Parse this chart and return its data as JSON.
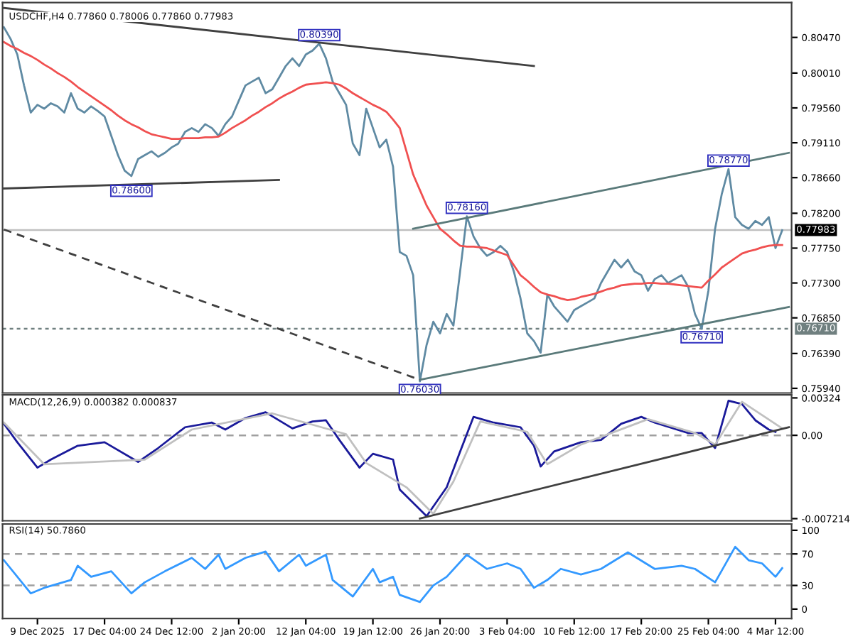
{
  "chart_data": [
    {
      "type": "line",
      "title": "USDCHF,H4 0.77860 0.78006 0.77860 0.77983",
      "series": [
        {
          "color": "#5f8aa3",
          "values": [
            0.806,
            0.8045,
            0.8025,
            0.7985,
            0.795,
            0.796,
            0.7955,
            0.7962,
            0.7958,
            0.795,
            0.7975,
            0.7955,
            0.795,
            0.7958,
            0.7952,
            0.7945,
            0.792,
            0.7895,
            0.7875,
            0.7868,
            0.789,
            0.7895,
            0.79,
            0.7893,
            0.7898,
            0.7905,
            0.791,
            0.7925,
            0.793,
            0.7925,
            0.7935,
            0.793,
            0.792,
            0.7935,
            0.7945,
            0.7965,
            0.7985,
            0.799,
            0.7995,
            0.7975,
            0.798,
            0.7995,
            0.801,
            0.802,
            0.801,
            0.8025,
            0.803,
            0.8039,
            0.802,
            0.799,
            0.7975,
            0.796,
            0.791,
            0.7895,
            0.7955,
            0.793,
            0.7905,
            0.7915,
            0.788,
            0.777,
            0.7765,
            0.774,
            0.7603,
            0.765,
            0.768,
            0.7665,
            0.769,
            0.7675,
            0.7745,
            0.7816,
            0.779,
            0.7775,
            0.7765,
            0.777,
            0.7778,
            0.777,
            0.7745,
            0.771,
            0.7665,
            0.7655,
            0.764,
            0.7715,
            0.77,
            0.769,
            0.768,
            0.7695,
            0.77,
            0.7705,
            0.771,
            0.773,
            0.7745,
            0.776,
            0.775,
            0.776,
            0.7745,
            0.774,
            0.772,
            0.7735,
            0.774,
            0.773,
            0.7735,
            0.774,
            0.7725,
            0.769,
            0.7671,
            0.772,
            0.78,
            0.7845,
            0.7877,
            0.7815,
            0.7805,
            0.78,
            0.781,
            0.7805,
            0.7815,
            0.7775,
            0.7798,
            null
          ]
        },
        {
          "color": "#f05050",
          "values": [
            0.8041,
            0.8036,
            0.8032,
            0.8027,
            0.8023,
            0.8018,
            0.8012,
            0.8007,
            0.8001,
            0.7996,
            0.799,
            0.7983,
            0.7977,
            0.7971,
            0.7965,
            0.7959,
            0.7953,
            0.7946,
            0.794,
            0.7935,
            0.7931,
            0.7926,
            0.7922,
            0.792,
            0.7918,
            0.7916,
            0.7916,
            0.7917,
            0.7917,
            0.7917,
            0.7918,
            0.7918,
            0.7919,
            0.7924,
            0.793,
            0.7935,
            0.794,
            0.7946,
            0.7951,
            0.7957,
            0.7962,
            0.7968,
            0.7973,
            0.7977,
            0.7982,
            0.7986,
            0.7987,
            0.7988,
            0.7989,
            0.7988,
            0.7986,
            0.7981,
            0.7975,
            0.797,
            0.7965,
            0.796,
            0.7956,
            0.7951,
            0.7941,
            0.793,
            0.79,
            0.787,
            0.785,
            0.783,
            0.7815,
            0.78,
            0.7793,
            0.7785,
            0.7778,
            0.7777,
            0.7777,
            0.7776,
            0.7775,
            0.7772,
            0.7769,
            0.7766,
            0.7753,
            0.774,
            0.7733,
            0.7725,
            0.7718,
            0.7715,
            0.7713,
            0.771,
            0.7708,
            0.7709,
            0.7712,
            0.7714,
            0.7716,
            0.7719,
            0.7722,
            0.7724,
            0.7727,
            0.7728,
            0.7729,
            0.7729,
            0.773,
            0.773,
            0.7729,
            0.7729,
            0.7728,
            0.7727,
            0.7726,
            0.7725,
            0.7724,
            0.7733,
            0.7741,
            0.775,
            0.7756,
            0.7762,
            0.7768,
            0.7771,
            0.7773,
            0.7776,
            0.7778,
            0.7779,
            0.7779,
            null
          ]
        },
        {
          "color": "#404040",
          "values": [
            0.8085,
            null,
            null,
            null,
            null,
            null,
            null,
            null,
            null,
            null,
            null,
            null,
            null,
            null,
            null,
            null,
            null,
            null,
            null,
            null,
            null,
            null,
            null,
            null,
            null,
            null,
            null,
            null,
            null,
            null,
            null,
            null,
            null,
            null,
            null,
            null,
            null,
            null,
            null,
            null,
            null,
            null,
            null,
            null,
            null,
            null,
            null,
            null,
            null,
            null,
            null,
            null,
            null,
            null,
            null,
            null,
            null,
            null,
            null,
            null,
            null,
            null,
            null,
            null,
            null,
            null,
            null,
            null,
            null,
            null,
            null,
            null,
            null,
            null,
            null,
            null,
            null,
            null,
            null,
            0.801,
            null,
            null,
            null,
            null,
            null,
            null,
            null,
            null,
            null,
            null,
            null,
            null,
            null,
            null,
            null,
            null,
            null,
            null,
            null,
            null,
            null,
            null,
            null,
            null,
            null,
            null,
            null,
            null,
            null,
            null,
            null,
            null,
            null,
            null,
            null,
            null,
            null,
            null
          ]
        },
        {
          "color": "#404040",
          "values": [
            0.7852,
            null,
            null,
            null,
            null,
            null,
            null,
            null,
            null,
            null,
            null,
            null,
            null,
            null,
            null,
            null,
            null,
            null,
            null,
            null,
            null,
            null,
            null,
            null,
            null,
            null,
            null,
            null,
            null,
            null,
            null,
            null,
            null,
            null,
            null,
            null,
            null,
            null,
            null,
            null,
            null,
            0.7863,
            null,
            null,
            null,
            null,
            null,
            null,
            null,
            null,
            null,
            null,
            null,
            null,
            null,
            null,
            null,
            null,
            null,
            null,
            null,
            null,
            null,
            null,
            null,
            null,
            null,
            null,
            null,
            null,
            null,
            null,
            null,
            null,
            null,
            null,
            null,
            null,
            null,
            null,
            null,
            null,
            null,
            null,
            null,
            null,
            null,
            null,
            null,
            null,
            null,
            null,
            null,
            null,
            null,
            null,
            null,
            null,
            null,
            null,
            null,
            null,
            null,
            null,
            null,
            null,
            null,
            null,
            null,
            null,
            null,
            null,
            null,
            null,
            null,
            null,
            null,
            null
          ]
        },
        {
          "color": "#5a7a7a",
          "values": [
            null,
            null,
            null,
            null,
            null,
            null,
            null,
            null,
            null,
            null,
            null,
            null,
            null,
            null,
            null,
            null,
            null,
            null,
            null,
            null,
            null,
            null,
            null,
            null,
            null,
            null,
            null,
            null,
            null,
            null,
            null,
            null,
            null,
            null,
            null,
            null,
            null,
            null,
            null,
            null,
            null,
            null,
            null,
            null,
            null,
            null,
            null,
            null,
            null,
            null,
            null,
            null,
            null,
            null,
            null,
            null,
            null,
            null,
            null,
            null,
            null,
            0.78,
            null,
            null,
            null,
            null,
            null,
            null,
            null,
            null,
            null,
            null,
            null,
            null,
            null,
            null,
            null,
            null,
            null,
            null,
            null,
            null,
            null,
            null,
            null,
            null,
            null,
            null,
            null,
            null,
            null,
            null,
            null,
            null,
            null,
            null,
            null,
            null,
            null,
            null,
            null,
            null,
            null,
            null,
            null,
            null,
            null,
            null,
            null,
            null,
            null,
            null,
            null,
            null,
            null,
            null,
            null,
            0.7898
          ]
        },
        {
          "color": "#5a7a7a",
          "values": [
            null,
            null,
            null,
            null,
            null,
            null,
            null,
            null,
            null,
            null,
            null,
            null,
            null,
            null,
            null,
            null,
            null,
            null,
            null,
            null,
            null,
            null,
            null,
            null,
            null,
            null,
            null,
            null,
            null,
            null,
            null,
            null,
            null,
            null,
            null,
            null,
            null,
            null,
            null,
            null,
            null,
            null,
            null,
            null,
            null,
            null,
            null,
            null,
            null,
            null,
            null,
            null,
            null,
            null,
            null,
            null,
            null,
            null,
            null,
            null,
            null,
            null,
            0.7605,
            null,
            null,
            null,
            null,
            null,
            null,
            null,
            null,
            null,
            null,
            null,
            null,
            null,
            null,
            null,
            null,
            null,
            null,
            null,
            null,
            null,
            null,
            null,
            null,
            null,
            null,
            null,
            null,
            null,
            null,
            null,
            null,
            null,
            null,
            null,
            null,
            null,
            null,
            null,
            null,
            null,
            null,
            null,
            null,
            null,
            null,
            null,
            null,
            null,
            null,
            null,
            null,
            null,
            null,
            0.7699
          ]
        },
        {
          "color": "#404040",
          "line_style": "dashed",
          "values": [
            0.7799,
            null,
            null,
            null,
            null,
            null,
            null,
            null,
            null,
            null,
            null,
            null,
            null,
            null,
            null,
            null,
            null,
            null,
            null,
            null,
            null,
            null,
            null,
            null,
            null,
            null,
            null,
            null,
            null,
            null,
            null,
            null,
            null,
            null,
            null,
            null,
            null,
            null,
            null,
            null,
            null,
            null,
            null,
            null,
            null,
            null,
            null,
            null,
            null,
            null,
            null,
            null,
            null,
            null,
            null,
            null,
            null,
            null,
            null,
            null,
            null,
            null,
            0.7605,
            null,
            null,
            null,
            null,
            null,
            null,
            null,
            null,
            null,
            null,
            null,
            null,
            null,
            null,
            null,
            null,
            null,
            null,
            null,
            null,
            null,
            null,
            null,
            null,
            null,
            null,
            null,
            null,
            null,
            null,
            null,
            null,
            null,
            null,
            null,
            null,
            null,
            null,
            null,
            null,
            null,
            null,
            null,
            null,
            null,
            null,
            null,
            null,
            null,
            null,
            null,
            null,
            null,
            null,
            null
          ]
        }
      ],
      "annotations": [
        {
          "text": "0.80390",
          "y": 0.8039
        },
        {
          "text": "0.78600",
          "y": 0.786
        },
        {
          "text": "0.76030",
          "y": 0.7603
        },
        {
          "text": "0.78160",
          "y": 0.7816
        },
        {
          "text": "0.76710",
          "y": 0.7671
        },
        {
          "text": "0.78770",
          "y": 0.7877
        }
      ],
      "ref_lines": [
        {
          "axis": "y",
          "value": 0.77983,
          "label": "0.77983",
          "color": "#c0c0c0",
          "line_style": "solid"
        },
        {
          "axis": "y",
          "value": 0.7671,
          "label": "0.76710",
          "color": "#708080",
          "line_style": "dotted"
        }
      ],
      "ylim": [
        0.7588,
        0.8092
      ],
      "yticks": [
        {
          "value": 0.8047,
          "label": "0.80470"
        },
        {
          "value": 0.8001,
          "label": "0.80010"
        },
        {
          "value": 0.7956,
          "label": "0.79560"
        },
        {
          "value": 0.7911,
          "label": "0.79110"
        },
        {
          "value": 0.7866,
          "label": "0.78660"
        },
        {
          "value": 0.782,
          "label": "0.78200"
        },
        {
          "value": 0.7775,
          "label": "0.77750"
        },
        {
          "value": 0.773,
          "label": "0.77300"
        },
        {
          "value": 0.7685,
          "label": "0.76850"
        },
        {
          "value": 0.7639,
          "label": "0.76390"
        },
        {
          "value": 0.7594,
          "label": "0.75940"
        }
      ],
      "tick_labels": "y",
      "grid": false,
      "legend": false
    },
    {
      "type": "line",
      "title": "MACD(12,26,9) 0.000382 0.000837",
      "series": [
        {
          "color": "#1a1a9a",
          "values": [
            0.001,
            null,
            -0.0006,
            null,
            null,
            -0.0028,
            null,
            -0.0021,
            null,
            null,
            null,
            -0.0009,
            null,
            null,
            null,
            -0.0006,
            null,
            null,
            null,
            null,
            -0.0023,
            null,
            null,
            -0.0011,
            null,
            null,
            null,
            0.0007,
            null,
            null,
            null,
            0.0011,
            null,
            0.0005,
            null,
            null,
            0.0015,
            null,
            null,
            0.002,
            null,
            null,
            null,
            0.0006,
            null,
            null,
            0.0012,
            null,
            0.0013,
            null,
            -0.0004,
            null,
            null,
            -0.0028,
            null,
            -0.0016,
            null,
            null,
            -0.0021,
            -0.0047,
            null,
            null,
            null,
            -0.007,
            null,
            null,
            -0.0045,
            null,
            -0.0014,
            null,
            0.0016,
            null,
            null,
            0.0011,
            null,
            null,
            null,
            0.0007,
            null,
            -0.0009,
            -0.0027,
            null,
            -0.0014,
            null,
            null,
            null,
            -0.0006,
            null,
            null,
            -0.0004,
            null,
            null,
            0.001,
            null,
            null,
            0.0016,
            null,
            0.0011,
            null,
            null,
            null,
            null,
            0.0002,
            null,
            0.0002,
            null,
            -0.0011,
            null,
            0.003,
            null,
            0.0027,
            null,
            0.0013,
            null,
            0.0005,
            0.0003,
            null,
            null
          ]
        },
        {
          "color": "#c0c0c0",
          "values": [
            0.0011,
            null,
            null,
            null,
            null,
            null,
            -0.0025,
            null,
            null,
            null,
            null,
            null,
            null,
            null,
            null,
            null,
            null,
            null,
            null,
            null,
            null,
            -0.0021,
            null,
            null,
            null,
            null,
            null,
            null,
            0.0005,
            null,
            null,
            null,
            null,
            null,
            null,
            null,
            null,
            null,
            null,
            null,
            0.0019,
            null,
            null,
            null,
            null,
            null,
            null,
            null,
            null,
            null,
            null,
            0.0001,
            null,
            null,
            -0.0024,
            null,
            null,
            null,
            null,
            null,
            -0.0045,
            null,
            null,
            null,
            -0.0068,
            null,
            null,
            -0.004,
            null,
            null,
            null,
            0.0012,
            null,
            null,
            null,
            null,
            null,
            null,
            0.0003,
            null,
            null,
            -0.0025,
            null,
            null,
            null,
            null,
            -0.0008,
            null,
            null,
            null,
            null,
            null,
            null,
            null,
            null,
            null,
            0.0014,
            null,
            null,
            null,
            null,
            null,
            null,
            0.0002,
            null,
            null,
            -0.0008,
            null,
            null,
            null,
            0.0029,
            null,
            null,
            null,
            null,
            null,
            0.0006,
            null
          ]
        },
        {
          "color": "#404040",
          "values": [
            null,
            null,
            null,
            null,
            null,
            null,
            null,
            null,
            null,
            null,
            null,
            null,
            null,
            null,
            null,
            null,
            null,
            null,
            null,
            null,
            null,
            null,
            null,
            null,
            null,
            null,
            null,
            null,
            null,
            null,
            null,
            null,
            null,
            null,
            null,
            null,
            null,
            null,
            null,
            null,
            null,
            null,
            null,
            null,
            null,
            null,
            null,
            null,
            null,
            null,
            null,
            null,
            null,
            null,
            null,
            null,
            null,
            null,
            null,
            null,
            null,
            null,
            -0.0072,
            null,
            null,
            null,
            null,
            null,
            null,
            null,
            null,
            null,
            null,
            null,
            null,
            null,
            null,
            null,
            null,
            null,
            null,
            null,
            null,
            null,
            null,
            null,
            null,
            null,
            null,
            null,
            null,
            null,
            null,
            null,
            null,
            null,
            null,
            null,
            null,
            null,
            null,
            null,
            null,
            null,
            null,
            null,
            null,
            null,
            null,
            null,
            null,
            null,
            null,
            null,
            null,
            null,
            null,
            0.0007
          ]
        }
      ],
      "ref_lines": [
        {
          "axis": "y",
          "value": 0,
          "color": "#a0a0a0",
          "line_style": "dashed"
        }
      ],
      "ylim": [
        -0.0074,
        0.0035
      ],
      "yticks": [
        {
          "value": 0.00324,
          "label": "0.00324"
        },
        {
          "value": 0,
          "label": "0.00"
        },
        {
          "value": -0.007214,
          "label": "-0.007214"
        }
      ],
      "tick_labels": "y",
      "grid": false,
      "legend": false
    },
    {
      "type": "line",
      "title": "RSI(14) 50.7860",
      "categories": [
        null,
        null,
        null,
        null,
        null,
        "9 Dec 2025",
        null,
        null,
        null,
        null,
        null,
        null,
        null,
        null,
        null,
        "17 Dec 04:00",
        null,
        null,
        null,
        null,
        null,
        null,
        null,
        null,
        null,
        "24 Dec 12:00",
        null,
        null,
        null,
        null,
        null,
        null,
        null,
        null,
        null,
        "2 Jan 20:00",
        null,
        null,
        null,
        null,
        null,
        null,
        null,
        null,
        null,
        "12 Jan 04:00",
        null,
        null,
        null,
        null,
        null,
        null,
        null,
        null,
        null,
        "19 Jan 12:00",
        null,
        null,
        null,
        null,
        null,
        null,
        null,
        null,
        null,
        "26 Jan 20:00",
        null,
        null,
        null,
        null,
        null,
        null,
        null,
        null,
        null,
        "3 Feb 04:00",
        null,
        null,
        null,
        null,
        null,
        null,
        null,
        null,
        null,
        "10 Feb 12:00",
        null,
        null,
        null,
        null,
        null,
        null,
        null,
        null,
        null,
        "17 Feb 20:00",
        null,
        null,
        null,
        null,
        null,
        null,
        null,
        null,
        null,
        "25 Feb 04:00",
        null,
        null,
        null,
        null,
        null,
        null,
        null,
        null,
        null,
        "4 Mar 12:00",
        null,
        null
      ],
      "series": [
        {
          "color": "#3399ff",
          "values": [
            62,
            null,
            null,
            null,
            20,
            null,
            27,
            null,
            null,
            null,
            37,
            55,
            null,
            41,
            null,
            null,
            48,
            null,
            null,
            20,
            null,
            34,
            null,
            null,
            48,
            null,
            null,
            null,
            65,
            null,
            51,
            null,
            69,
            51,
            null,
            null,
            65,
            null,
            null,
            73,
            null,
            48,
            null,
            null,
            69,
            55,
            null,
            null,
            69,
            37,
            null,
            null,
            16,
            null,
            null,
            51,
            34,
            null,
            41,
            18,
            null,
            null,
            9,
            null,
            30,
            null,
            41,
            null,
            null,
            69,
            null,
            null,
            51,
            null,
            null,
            58,
            null,
            51,
            null,
            27,
            null,
            37,
            null,
            51,
            null,
            null,
            44,
            null,
            null,
            51,
            null,
            null,
            null,
            72,
            null,
            null,
            null,
            51,
            null,
            null,
            null,
            55,
            null,
            51,
            null,
            null,
            34,
            null,
            null,
            79,
            null,
            62,
            null,
            58,
            null,
            41,
            52,
            null
          ]
        }
      ],
      "ref_lines": [
        {
          "axis": "y",
          "value": 70,
          "color": "#a0a0a0",
          "line_style": "dashed"
        },
        {
          "axis": "y",
          "value": 30,
          "color": "#a0a0a0",
          "line_style": "dashed"
        }
      ],
      "ylim": [
        -12,
        108
      ],
      "yticks": [
        0,
        30,
        70,
        100
      ],
      "grid": false,
      "legend": false
    }
  ]
}
